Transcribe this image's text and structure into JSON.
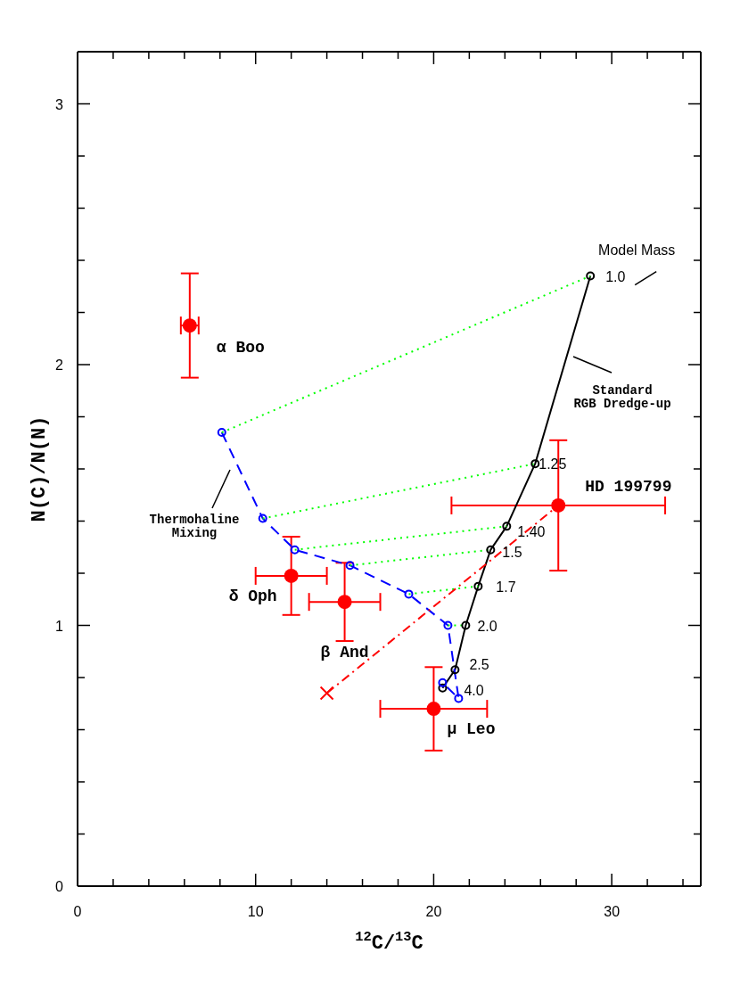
{
  "chart_data": {
    "type": "scatter",
    "xlabel": "$^{12}$C/$^{13}$C",
    "ylabel": "N(C)/N(N)",
    "xlim": [
      0,
      35
    ],
    "ylim": [
      0,
      3.2
    ],
    "xticks": [
      0,
      {
        "value": 2,
        "label": null
      },
      {
        "value": 4,
        "label": null
      },
      {
        "value": 6,
        "label": null
      },
      {
        "value": 8,
        "label": null
      },
      10,
      {
        "value": 12,
        "label": null
      },
      {
        "value": 14,
        "label": null
      },
      {
        "value": 16,
        "label": null
      },
      {
        "value": 18,
        "label": null
      },
      20,
      {
        "value": 22,
        "label": null
      },
      {
        "value": 24,
        "label": null
      },
      {
        "value": 26,
        "label": null
      },
      {
        "value": 28,
        "label": null
      },
      30,
      {
        "value": 32,
        "label": null
      },
      {
        "value": 34,
        "label": null
      }
    ],
    "yticks": [
      0,
      {
        "value": 0.2,
        "label": null
      },
      {
        "value": 0.4,
        "label": null
      },
      {
        "value": 0.6,
        "label": null
      },
      {
        "value": 0.8,
        "label": null
      },
      1,
      {
        "value": 1.2,
        "label": null
      },
      {
        "value": 1.4,
        "label": null
      },
      {
        "value": 1.6,
        "label": null
      },
      {
        "value": 1.8,
        "label": null
      },
      2,
      {
        "value": 2.2,
        "label": null
      },
      {
        "value": 2.4,
        "label": null
      },
      {
        "value": 2.6,
        "label": null
      },
      {
        "value": 2.8,
        "label": null
      },
      3
    ],
    "grid": false,
    "legend": false,
    "series": [
      {
        "name": "α Boo",
        "color": "#ff0000",
        "marker": "circle",
        "x": [
          6.3
        ],
        "values": [
          2.15
        ],
        "errors": [
          0.2
        ],
        "xerrors": [
          0.5
        ]
      },
      {
        "name": "δ Oph",
        "color": "#ff0000",
        "marker": "circle",
        "x": [
          12.0
        ],
        "values": [
          1.19
        ],
        "errors": [
          0.15
        ],
        "xerrors": [
          2
        ]
      },
      {
        "name": "β And",
        "color": "#ff0000",
        "marker": "circle",
        "x": [
          15.0
        ],
        "values": [
          1.09
        ],
        "errors": [
          0.15
        ],
        "xerrors": [
          2
        ]
      },
      {
        "name": "μ Leo",
        "color": "#ff0000",
        "marker": "circle",
        "x": [
          20.0
        ],
        "values": [
          0.68
        ],
        "errors": [
          0.16
        ],
        "xerrors": [
          3
        ]
      },
      {
        "name": "HD 199799",
        "color": "#ff0000",
        "marker": "circle",
        "x": [
          27.0
        ],
        "values": [
          1.46
        ],
        "errors": [
          0.25
        ],
        "xerrors": [
          6
        ]
      },
      {
        "type": "line",
        "color": "#000000",
        "marker": "circle",
        "line_style": "solid",
        "x": [
          28.8,
          25.7,
          24.1,
          23.2,
          22.5,
          21.8,
          21.2,
          20.5
        ],
        "values": [
          2.34,
          1.62,
          1.38,
          1.29,
          1.15,
          1.0,
          0.83,
          0.76
        ]
      },
      {
        "type": "line",
        "color": "#0000ff",
        "marker": "circle",
        "line_style": "dashed",
        "x": [
          8.1,
          10.4,
          12.2,
          15.3,
          18.6,
          20.8,
          21.4,
          20.5
        ],
        "values": [
          1.74,
          1.41,
          1.29,
          1.23,
          1.12,
          1.0,
          0.72,
          0.78
        ]
      },
      {
        "type": "line",
        "color": "#00ff00",
        "marker": "none",
        "line_style": "dotted",
        "x": [
          8.1,
          28.8
        ],
        "values": [
          1.74,
          2.34
        ]
      },
      {
        "type": "line",
        "color": "#00ff00",
        "marker": "none",
        "line_style": "dotted",
        "x": [
          10.4,
          25.7
        ],
        "values": [
          1.41,
          1.62
        ]
      },
      {
        "type": "line",
        "color": "#00ff00",
        "marker": "none",
        "line_style": "dotted",
        "x": [
          12.2,
          24.1
        ],
        "values": [
          1.29,
          1.38
        ]
      },
      {
        "type": "line",
        "color": "#00ff00",
        "marker": "none",
        "line_style": "dotted",
        "x": [
          15.3,
          23.2
        ],
        "values": [
          1.23,
          1.29
        ]
      },
      {
        "type": "line",
        "color": "#00ff00",
        "marker": "none",
        "line_style": "dotted",
        "x": [
          18.6,
          22.5
        ],
        "values": [
          1.12,
          1.15
        ]
      },
      {
        "type": "line",
        "color": "#00ff00",
        "marker": "none",
        "line_style": "dotted",
        "x": [
          20.8,
          21.8
        ],
        "values": [
          1.0,
          1.0
        ]
      },
      {
        "type": "line",
        "color": "#ff0000",
        "marker": "none",
        "line_style": "dashdot",
        "x": [
          14.0,
          27.0
        ],
        "values": [
          0.74,
          1.46
        ]
      },
      {
        "color": "#ff0000",
        "marker": "cross",
        "x": [
          14.0
        ],
        "values": [
          0.74
        ]
      }
    ],
    "annotations": [
      {
        "text": "1.0",
        "x": 28.8,
        "y": 2.34
      },
      {
        "text": "1.25",
        "x": 25.7,
        "y": 1.62
      },
      {
        "text": "1.40",
        "x": 24.1,
        "y": 1.38
      },
      {
        "text": "1.5",
        "x": 23.2,
        "y": 1.29
      },
      {
        "text": "1.7",
        "x": 22.5,
        "y": 1.15
      },
      {
        "text": "2.0",
        "x": 21.8,
        "y": 1.0
      },
      {
        "text": "2.5",
        "x": 21.2,
        "y": 0.83
      },
      {
        "text": "4.0",
        "x": 20.5,
        "y": 0.76
      },
      {
        "text": "Model Mass",
        "x": 28.8,
        "y": 2.34
      },
      "Standard\nRGB Dredge-up",
      "Thermohaline\nMixing"
    ]
  }
}
